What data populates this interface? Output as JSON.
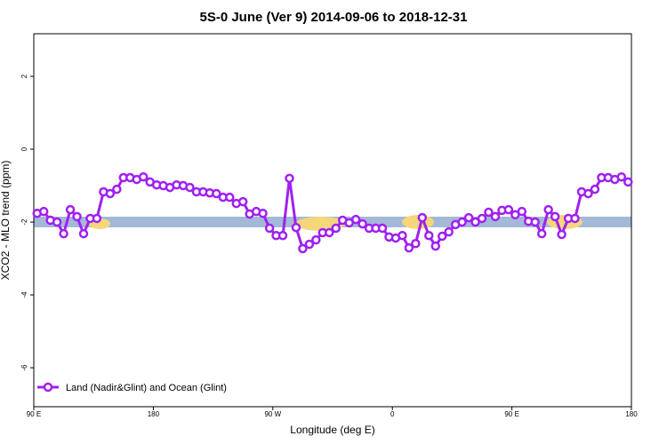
{
  "chart_data": {
    "type": "line",
    "title": "5S-0 June (Ver 9)   2014-09-06 to 2018-12-31",
    "x_label": "Longitude (deg E)",
    "y_label": "XCO2 - MLO trend (ppm)",
    "xlim": [
      90,
      540
    ],
    "ylim": [
      -7.07,
      3.17
    ],
    "xticks": [
      {
        "value": 90,
        "label": "90 E"
      },
      180,
      {
        "value": 270,
        "label": "90 W"
      },
      {
        "value": 360,
        "label": "0"
      },
      {
        "value": 450,
        "label": "90 E"
      },
      {
        "value": 540,
        "label": "180"
      }
    ],
    "yticks": [
      2,
      0,
      -2,
      -4,
      -6
    ],
    "legend": "bottom-left",
    "x": [
      92.5,
      97.5,
      102.5,
      107.5,
      112.5,
      117.5,
      122.5,
      127.5,
      132.5,
      137.5,
      142.5,
      147.5,
      152.5,
      157.5,
      162.5,
      167.5,
      172.5,
      177.5,
      182.5,
      187.5,
      192.5,
      197.5,
      202.5,
      207.5,
      212.5,
      217.5,
      222.5,
      227.5,
      232.5,
      237.5,
      242.5,
      247.5,
      252.5,
      257.5,
      262.5,
      267.5,
      272.5,
      277.5,
      282.5,
      287.5,
      292.5,
      297.5,
      302.5,
      307.5,
      312.5,
      317.5,
      322.5,
      327.5,
      332.5,
      337.5,
      342.5,
      347.5,
      352.5,
      357.5,
      362.5,
      367.5,
      372.5,
      377.5,
      382.5,
      387.5,
      392.5,
      397.5,
      402.5,
      407.5,
      412.5,
      417.5,
      422.5,
      427.5,
      432.5,
      437.5,
      442.5,
      447.5,
      452.5,
      457.5,
      462.5,
      467.5,
      472.5,
      477.5,
      482.5,
      487.5,
      492.5,
      497.5,
      502.5,
      507.5,
      512.5,
      517.5,
      522.5,
      527.5,
      532.5,
      537.5
    ],
    "series": [
      {
        "name": "Land (Nadir&Glint) and Ocean (Glint)",
        "color": "#a020f0",
        "values": [
          -1.76,
          -1.71,
          -1.95,
          -2.0,
          -2.32,
          -1.66,
          -1.85,
          -2.32,
          -1.9,
          -1.9,
          -1.17,
          -1.22,
          -1.1,
          -0.78,
          -0.78,
          -0.83,
          -0.76,
          -0.9,
          -0.98,
          -1.0,
          -1.05,
          -0.98,
          -1.0,
          -1.05,
          -1.17,
          -1.17,
          -1.2,
          -1.22,
          -1.32,
          -1.32,
          -1.49,
          -1.44,
          -1.78,
          -1.71,
          -1.76,
          -2.17,
          -2.37,
          -2.37,
          -0.8,
          -2.15,
          -2.73,
          -2.61,
          -2.49,
          -2.29,
          -2.29,
          -2.17,
          -1.95,
          -2.02,
          -1.93,
          -2.05,
          -2.17,
          -2.17,
          -2.17,
          -2.41,
          -2.44,
          -2.37,
          -2.71,
          -2.59,
          -1.88,
          -2.37,
          -2.66,
          -2.39,
          -2.27,
          -2.07,
          -2.0,
          -1.88,
          -2.0,
          -1.9,
          -1.73,
          -1.85,
          -1.68,
          -1.66,
          -1.8,
          -1.71,
          -1.98,
          -2.0,
          -2.32,
          -1.66,
          -1.85,
          -2.34,
          -1.9,
          -1.9,
          -1.17,
          -1.22,
          -1.1,
          -0.78,
          -0.78,
          -0.83,
          -0.76,
          -0.9
        ]
      }
    ]
  }
}
